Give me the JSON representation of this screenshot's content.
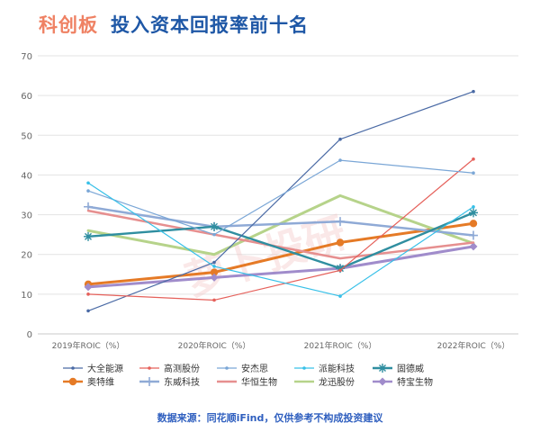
{
  "header": {
    "brand": "科创板",
    "headline": "投入资本回报率前十名"
  },
  "source": "数据来源：同花顺iFind，仅供参考不构成投资建议",
  "watermark": "萝卜投研",
  "chart_data": {
    "type": "line",
    "categories": [
      "2019年ROIC（%）",
      "2020年ROIC（%）",
      "2021年ROIC（%）",
      "2022年ROIC（%）"
    ],
    "ylim": [
      0,
      70
    ],
    "yticks": [
      0,
      10,
      20,
      30,
      40,
      50,
      60,
      70
    ],
    "grid": true,
    "legend_position": "bottom",
    "series": [
      {
        "name": "大全能源",
        "color": "#4a6aa5",
        "width": 1.2,
        "marker": "dot",
        "values": [
          5.8,
          18.0,
          49.0,
          61.0
        ]
      },
      {
        "name": "高测股份",
        "color": "#e5605a",
        "width": 1.2,
        "marker": "dot",
        "values": [
          10.0,
          8.5,
          16.0,
          44.0
        ]
      },
      {
        "name": "安杰思",
        "color": "#7aa6d6",
        "width": 1.2,
        "marker": "dot",
        "values": [
          36.0,
          25.0,
          43.7,
          40.5
        ]
      },
      {
        "name": "派能科技",
        "color": "#37c0e8",
        "width": 1.2,
        "marker": "dot",
        "values": [
          38.0,
          17.0,
          9.5,
          32.0
        ]
      },
      {
        "name": "固德威",
        "color": "#2f8ea0",
        "width": 2.4,
        "marker": "star",
        "values": [
          24.5,
          27.0,
          16.5,
          30.5
        ]
      },
      {
        "name": "奥特维",
        "color": "#e57a26",
        "width": 3,
        "marker": "circle",
        "values": [
          12.5,
          15.5,
          23.0,
          27.8
        ]
      },
      {
        "name": "东威科技",
        "color": "#8faad6",
        "width": 2.5,
        "marker": "plus",
        "values": [
          32.0,
          27.0,
          28.3,
          24.8
        ]
      },
      {
        "name": "华恒生物",
        "color": "#e68f8f",
        "width": 2.5,
        "marker": "none",
        "values": [
          31.0,
          25.0,
          19.0,
          23.0
        ]
      },
      {
        "name": "龙迅股份",
        "color": "#b6d38a",
        "width": 3,
        "marker": "none",
        "values": [
          26.0,
          20.0,
          34.8,
          22.8
        ]
      },
      {
        "name": "特宝生物",
        "color": "#a08ccb",
        "width": 3,
        "marker": "diamond",
        "values": [
          11.8,
          14.2,
          16.5,
          22.0
        ]
      }
    ]
  }
}
